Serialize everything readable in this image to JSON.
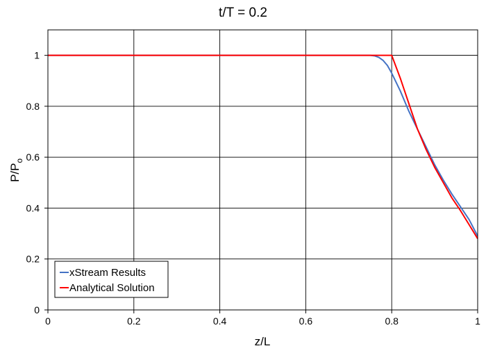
{
  "chart_data": {
    "type": "line",
    "title": "t/T = 0.2",
    "xlabel": "z/L",
    "ylabel_main": "P/P",
    "ylabel_sub": "o",
    "xlim": [
      0,
      1
    ],
    "ylim": [
      0,
      1.1
    ],
    "x_ticks": [
      0,
      0.2,
      0.4,
      0.6,
      0.8,
      1
    ],
    "x_tick_labels": [
      "0",
      "0.2",
      "0.4",
      "0.6",
      "0.8",
      "1"
    ],
    "y_ticks": [
      0,
      0.2,
      0.4,
      0.6,
      0.8,
      1
    ],
    "y_tick_labels": [
      "0",
      "0.2",
      "0.4",
      "0.6",
      "0.8",
      "1"
    ],
    "grid": true,
    "legend_position": "bottom-left",
    "series": [
      {
        "name": "xStream Results",
        "color": "#4472C4",
        "x": [
          0,
          0.5,
          0.7,
          0.75,
          0.76,
          0.77,
          0.78,
          0.79,
          0.8,
          0.82,
          0.84,
          0.86,
          0.88,
          0.9,
          0.92,
          0.94,
          0.96,
          0.98,
          1.0
        ],
        "y": [
          1.0,
          1.0,
          1.0,
          1.0,
          0.998,
          0.992,
          0.98,
          0.96,
          0.93,
          0.86,
          0.78,
          0.71,
          0.64,
          0.57,
          0.51,
          0.455,
          0.405,
          0.355,
          0.29
        ]
      },
      {
        "name": "Analytical Solution",
        "color": "#FF0000",
        "x": [
          0,
          0.5,
          0.8,
          0.82,
          0.84,
          0.86,
          0.88,
          0.9,
          0.92,
          0.94,
          0.96,
          0.98,
          1.0
        ],
        "y": [
          1.0,
          1.0,
          1.0,
          0.91,
          0.81,
          0.71,
          0.63,
          0.56,
          0.5,
          0.44,
          0.39,
          0.335,
          0.28
        ]
      }
    ]
  }
}
